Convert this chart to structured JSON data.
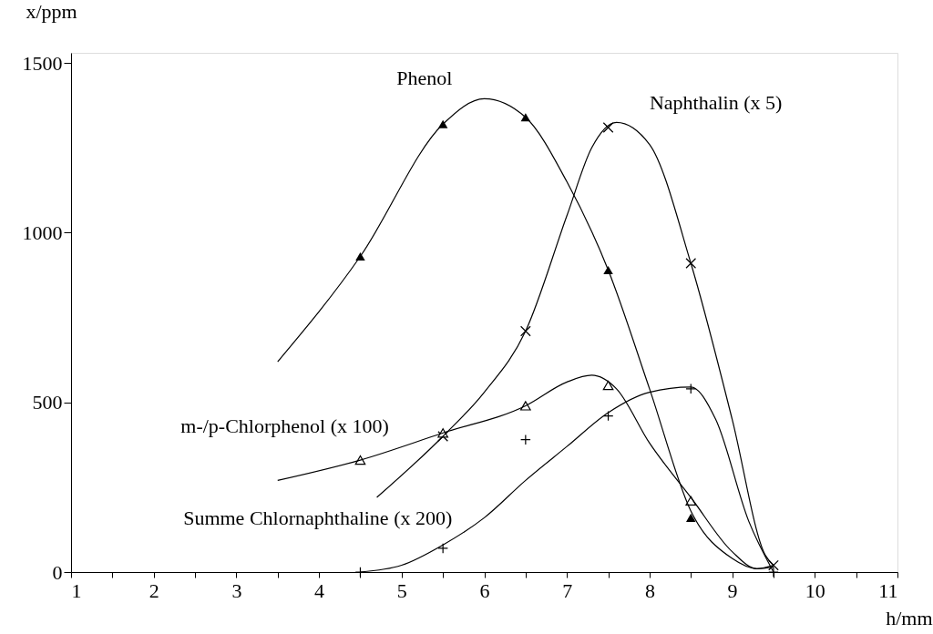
{
  "chart_data": {
    "type": "scatter",
    "xlabel": "h/mm",
    "ylabel": "x/ppm",
    "xlim": [
      1,
      11
    ],
    "ylim": [
      0,
      1530
    ],
    "xticks": [
      1,
      {
        "value": 1.5,
        "label": null
      },
      2,
      {
        "value": 2.5,
        "label": null
      },
      3,
      {
        "value": 3.5,
        "label": null
      },
      4,
      {
        "value": 4.5,
        "label": null
      },
      5,
      {
        "value": 5.5,
        "label": null
      },
      6,
      {
        "value": 6.5,
        "label": null
      },
      7,
      {
        "value": 7.5,
        "label": null
      },
      8,
      {
        "value": 8.5,
        "label": null
      },
      9,
      {
        "value": 9.5,
        "label": null
      },
      10,
      {
        "value": 10.5,
        "label": null
      },
      11
    ],
    "yticks": [
      0,
      500,
      1000,
      1500
    ],
    "grid": false,
    "series": [
      {
        "marker": "triangle",
        "color": "#000000",
        "x": [
          4.5,
          5.5,
          6.5,
          7.5,
          8.5
        ],
        "values": [
          930,
          1320,
          1340,
          890,
          160
        ]
      },
      {
        "marker": "x",
        "color": "#000000",
        "x": [
          5.5,
          6.5,
          7.5,
          8.5,
          9.5
        ],
        "values": [
          400,
          710,
          1310,
          910,
          20
        ]
      },
      {
        "marker": "triangle-open",
        "color": "#000000",
        "x": [
          4.5,
          5.5,
          6.5,
          7.5,
          8.5
        ],
        "values": [
          330,
          410,
          490,
          550,
          210
        ]
      },
      {
        "marker": "cross",
        "color": "#000000",
        "x": [
          4.5,
          5.5,
          6.5,
          7.5,
          8.5,
          9.5
        ],
        "values": [
          0,
          70,
          390,
          460,
          540,
          0
        ]
      },
      {
        "type": "line",
        "color": "#000000",
        "x": [
          3.5,
          4.5,
          5.5,
          6.0,
          6.5,
          7.0,
          7.5,
          8.0,
          8.5,
          9.0,
          9.3,
          9.5
        ],
        "values": [
          620,
          930,
          1320,
          1395,
          1340,
          1150,
          890,
          540,
          180,
          40,
          10,
          15
        ]
      },
      {
        "type": "line",
        "color": "#000000",
        "x": [
          4.7,
          5.5,
          6.0,
          6.5,
          7.0,
          7.3,
          7.6,
          8.0,
          8.5,
          9.0,
          9.4,
          9.5
        ],
        "values": [
          220,
          400,
          530,
          710,
          1050,
          1250,
          1325,
          1260,
          910,
          450,
          50,
          20
        ]
      },
      {
        "type": "line",
        "color": "#000000",
        "x": [
          3.5,
          4.5,
          5.5,
          6.5,
          7.0,
          7.3,
          7.6,
          8.0,
          8.5,
          9.0,
          9.3,
          9.5
        ],
        "values": [
          270,
          330,
          410,
          490,
          560,
          580,
          540,
          380,
          220,
          60,
          10,
          20
        ]
      },
      {
        "type": "line",
        "color": "#000000",
        "x": [
          4.5,
          5.0,
          5.5,
          6.0,
          6.5,
          7.0,
          7.5,
          8.0,
          8.5,
          8.8,
          9.2,
          9.5
        ],
        "values": [
          0,
          20,
          80,
          160,
          270,
          370,
          470,
          530,
          545,
          450,
          150,
          0
        ]
      }
    ],
    "annotations": [
      {
        "text": "Phenol",
        "x": 5.7,
        "y": 1380
      },
      {
        "text": "Naphthalin (x 5)",
        "x": 8.0,
        "y": 1260
      },
      {
        "text": "m-/p-Chlorphenol (x 100)",
        "x": 5.0,
        "y": 370
      },
      {
        "text": "Summe Chlornaphthaline (x 200)",
        "x": 5.7,
        "y": 100
      }
    ]
  }
}
